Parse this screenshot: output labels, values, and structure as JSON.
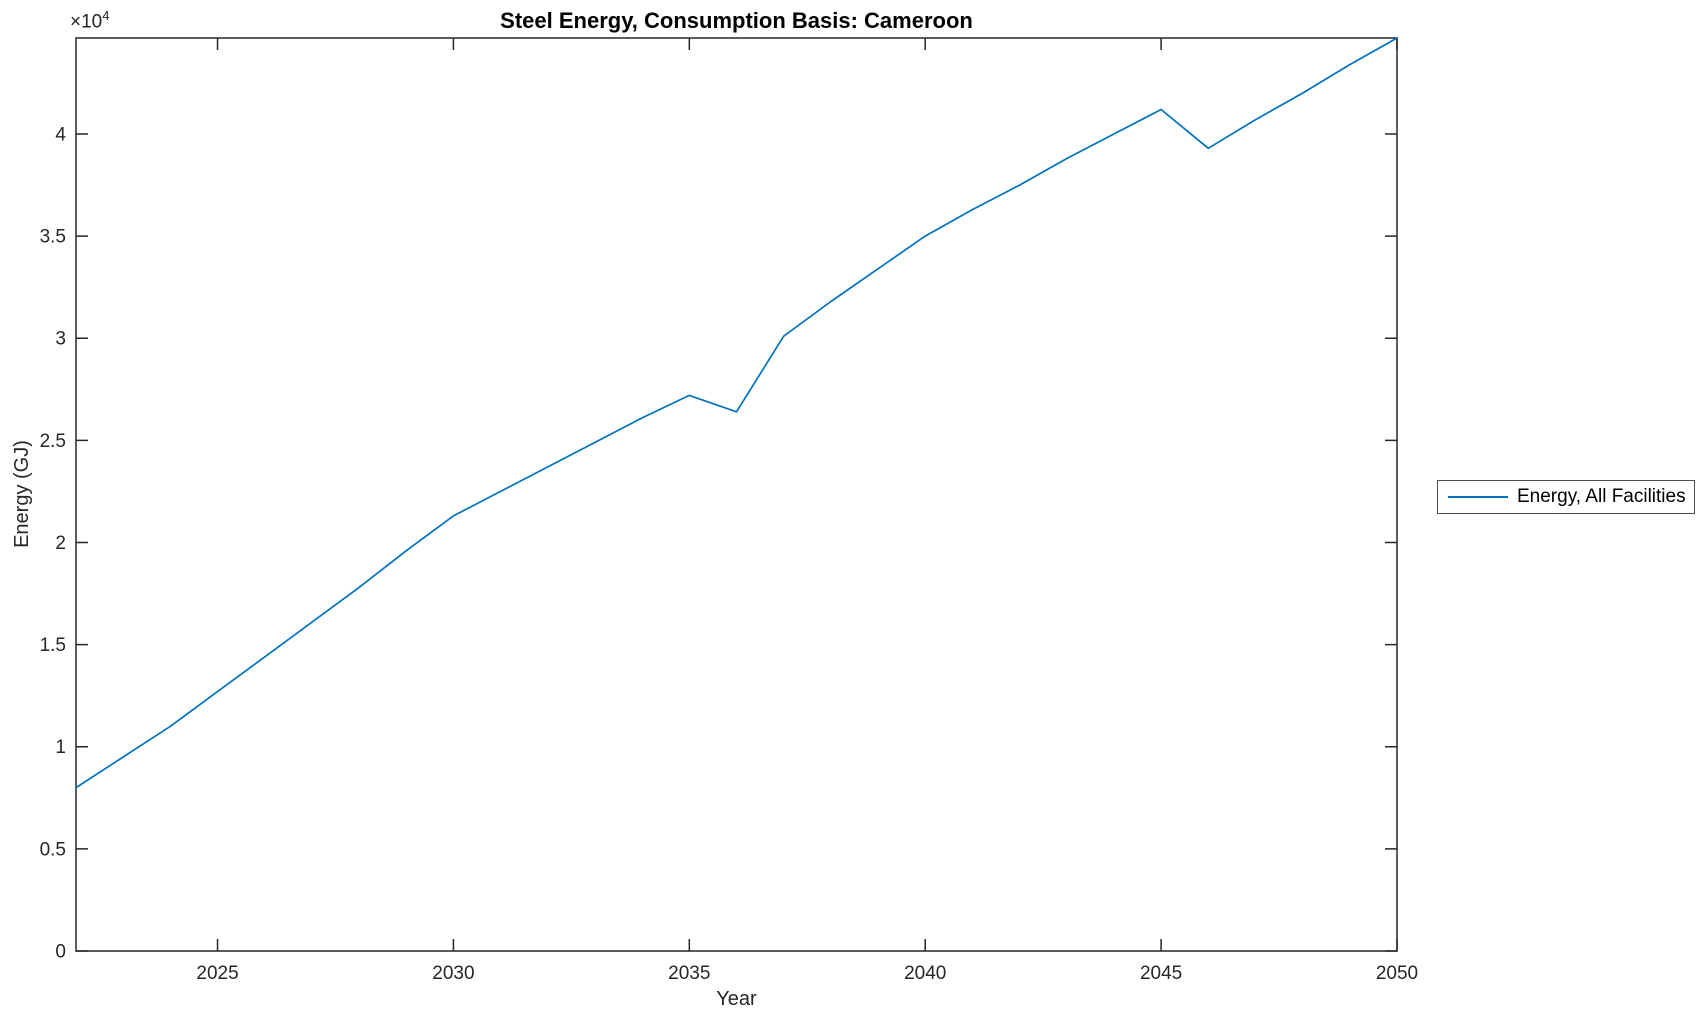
{
  "chart_data": {
    "type": "line",
    "title": "Steel Energy, Consumption Basis: Cameroon",
    "xlabel": "Year",
    "ylabel": "Energy (GJ)",
    "y_offset": {
      "base": "×10",
      "exponent": "4"
    },
    "grid": false,
    "xlim": [
      2022,
      2050
    ],
    "ylim": [
      0,
      44700
    ],
    "xticks": [
      2025,
      2030,
      2035,
      2040,
      2045,
      2050
    ],
    "yticks": [
      0,
      5000,
      10000,
      15000,
      20000,
      25000,
      30000,
      35000,
      40000
    ],
    "ytick_labels": [
      "0",
      "0.5",
      "1",
      "1.5",
      "2",
      "2.5",
      "3",
      "3.5",
      "4"
    ],
    "axis_color": "#262626",
    "text_color": "#262626",
    "background_color": "#ffffff",
    "x": [
      2022,
      2023,
      2024,
      2025,
      2026,
      2027,
      2028,
      2029,
      2030,
      2031,
      2032,
      2033,
      2034,
      2035,
      2036,
      2037,
      2038,
      2039,
      2040,
      2041,
      2042,
      2043,
      2044,
      2045,
      2046,
      2047,
      2048,
      2049,
      2050
    ],
    "series": [
      {
        "name": "Energy, All Facilities",
        "color": "#0072BD",
        "values": [
          8000,
          9500,
          11000,
          12700,
          14400,
          16100,
          17800,
          19600,
          21300,
          22500,
          23700,
          24900,
          26100,
          27200,
          26400,
          30100,
          31800,
          33400,
          35000,
          36300,
          37500,
          38800,
          40000,
          41200,
          39300,
          40700,
          42000,
          43400,
          44700
        ]
      }
    ],
    "legend": {
      "position": "eastoutside",
      "entries": [
        "Energy, All Facilities"
      ]
    }
  }
}
